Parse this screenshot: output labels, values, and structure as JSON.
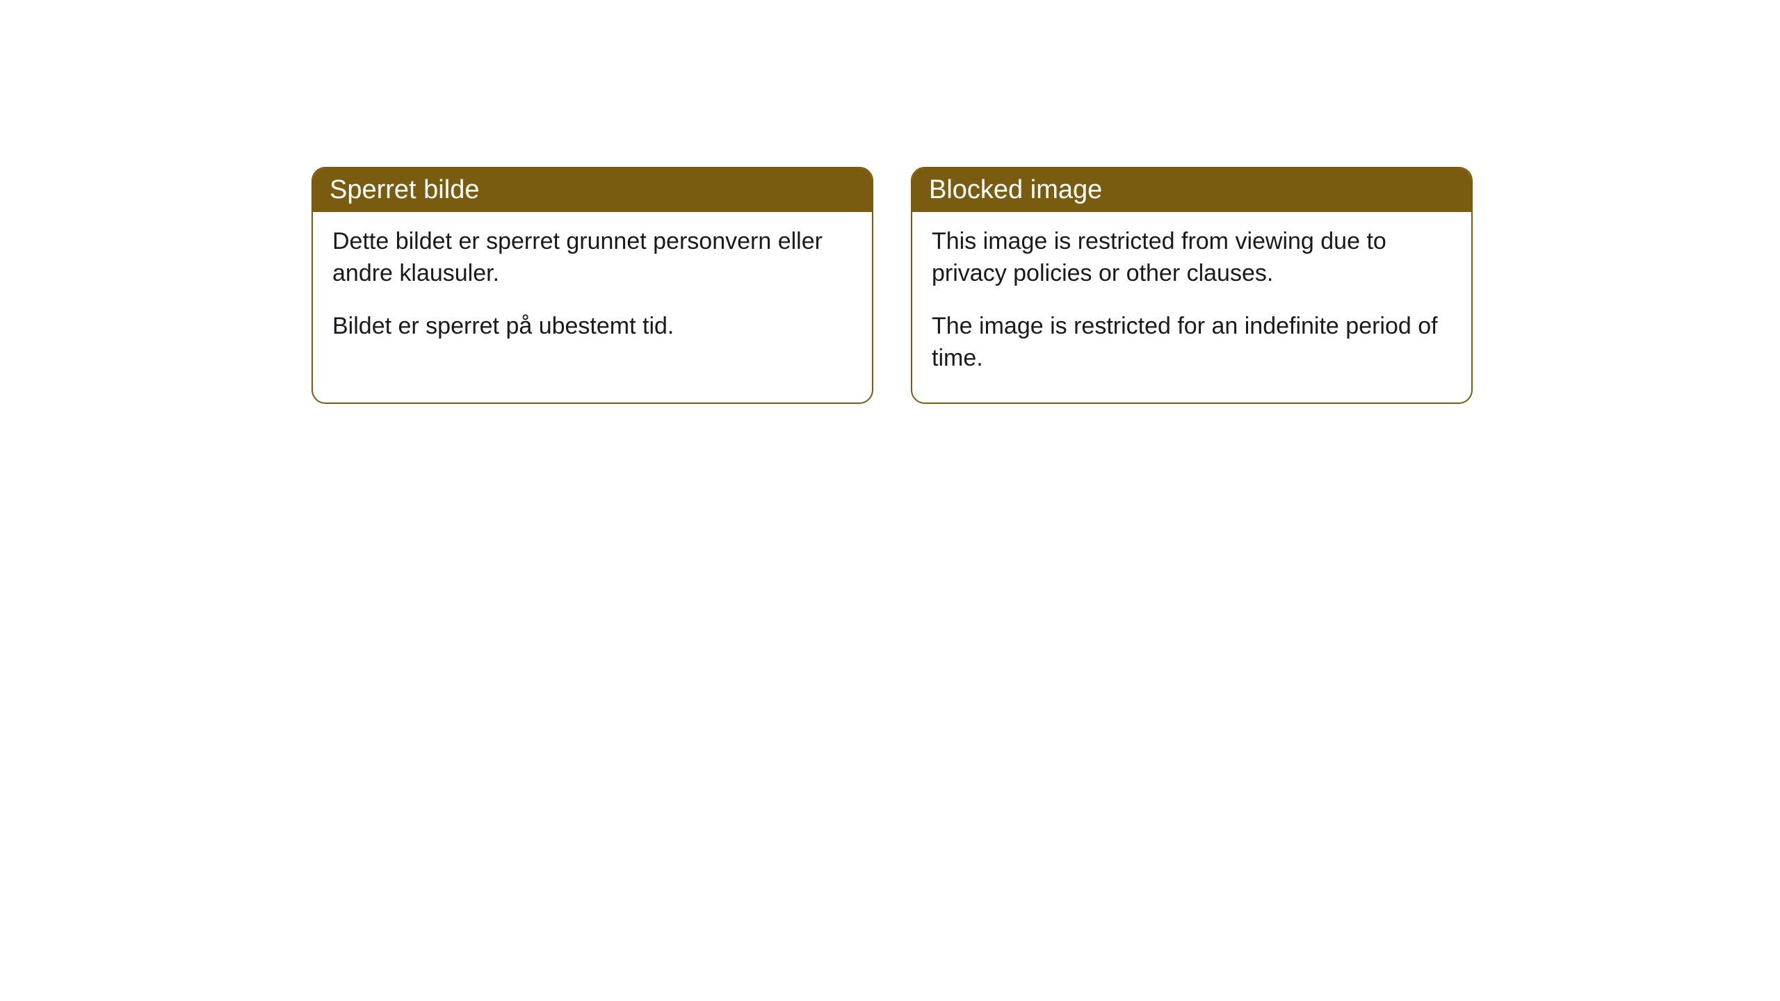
{
  "cards": [
    {
      "title": "Sperret bilde",
      "paragraph1": "Dette bildet er sperret grunnet personvern eller andre klausuler.",
      "paragraph2": "Bildet er sperret på ubestemt tid."
    },
    {
      "title": "Blocked image",
      "paragraph1": "This image is restricted from viewing due to privacy policies or other clauses.",
      "paragraph2": "The image is restricted for an indefinite period of time."
    }
  ],
  "styling": {
    "header_background": "#7a5c11",
    "header_text_color": "#ffffff",
    "border_color": "#7a5c11",
    "body_background": "#ffffff",
    "body_text_color": "#1a1a1a",
    "border_radius": 20,
    "header_fontsize": 38,
    "body_fontsize": 34
  }
}
